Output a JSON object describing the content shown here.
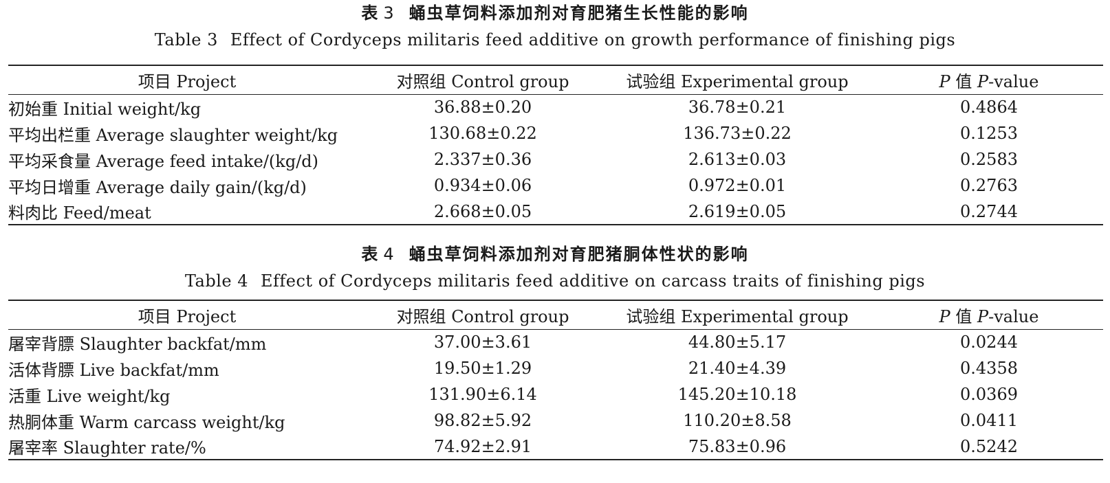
{
  "tables": [
    {
      "cn_label": "表",
      "number": "3",
      "cn_title": "蛹虫草饲料添加剂对育肥猪生长性能的影响",
      "en_label": "Table 3",
      "en_title": "Effect of Cordyceps militaris feed additive on growth performance of finishing pigs",
      "headers": {
        "item": "项目 Project",
        "control": "对照组 Control group",
        "experimental": "试验组 Experimental group",
        "p_prefix": "P",
        "p_middle": " 值 ",
        "p_italic": "P",
        "p_suffix": "-value"
      },
      "rows": [
        {
          "item": "初始重 Initial weight/kg",
          "control": "36.88±0.20",
          "experimental": "36.78±0.21",
          "p": "0.4864"
        },
        {
          "item": "平均出栏重 Average slaughter weight/kg",
          "control": "130.68±0.22",
          "experimental": "136.73±0.22",
          "p": "0.1253"
        },
        {
          "item": "平均采食量 Average feed intake/(kg/d)",
          "control": "2.337±0.36",
          "experimental": "2.613±0.03",
          "p": "0.2583"
        },
        {
          "item": "平均日增重 Average daily gain/(kg/d)",
          "control": "0.934±0.06",
          "experimental": "0.972±0.01",
          "p": "0.2763"
        },
        {
          "item": "料肉比 Feed/meat",
          "control": "2.668±0.05",
          "experimental": "2.619±0.05",
          "p": "0.2744"
        }
      ]
    },
    {
      "cn_label": "表",
      "number": "4",
      "cn_title": "蛹虫草饲料添加剂对育肥猪胴体性状的影响",
      "en_label": "Table 4",
      "en_title": "Effect of Cordyceps militaris feed additive on carcass traits of finishing pigs",
      "headers": {
        "item": "项目 Project",
        "control": "对照组 Control group",
        "experimental": "试验组 Experimental group",
        "p_prefix": "P",
        "p_middle": " 值 ",
        "p_italic": "P",
        "p_suffix": "-value"
      },
      "rows": [
        {
          "item": "屠宰背膘 Slaughter backfat/mm",
          "control": "37.00±3.61",
          "experimental": "44.80±5.17",
          "p": "0.0244"
        },
        {
          "item": "活体背膘 Live backfat/mm",
          "control": "19.50±1.29",
          "experimental": "21.40±4.39",
          "p": "0.4358"
        },
        {
          "item": "活重 Live weight/kg",
          "control": "131.90±6.14",
          "experimental": "145.20±10.18",
          "p": "0.0369"
        },
        {
          "item": "热胴体重 Warm carcass weight/kg",
          "control": "98.82±5.92",
          "experimental": "110.20±8.58",
          "p": "0.0411"
        },
        {
          "item": "屠宰率 Slaughter rate/%",
          "control": "74.92±2.91",
          "experimental": "75.83±0.96",
          "p": "0.5242"
        }
      ]
    }
  ]
}
